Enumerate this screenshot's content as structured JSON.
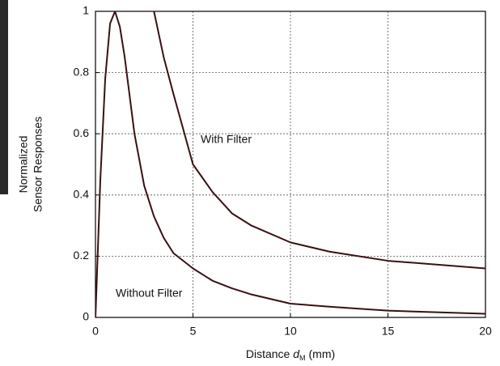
{
  "chart_data": {
    "type": "line",
    "ylabel": [
      "Normalized",
      "Sensor Responses"
    ],
    "xlabel": {
      "text": "Distance",
      "symbol": "d",
      "subscript": "M",
      "unit": "(mm)"
    },
    "x": [
      0,
      0.25,
      0.5,
      0.75,
      1,
      1.25,
      1.5,
      2,
      2.5,
      3,
      3.5,
      4,
      5,
      6,
      7,
      8,
      10,
      12,
      15,
      20
    ],
    "series": [
      {
        "name": "With Filter",
        "color": "#3a1012",
        "values": [
          null,
          null,
          null,
          null,
          null,
          null,
          null,
          null,
          null,
          1.0,
          0.85,
          0.73,
          0.5,
          0.41,
          0.34,
          0.3,
          0.245,
          0.215,
          0.185,
          0.16
        ]
      },
      {
        "name": "Without Filter",
        "color": "#3a1012",
        "values": [
          0,
          0.45,
          0.78,
          0.96,
          1.0,
          0.95,
          0.85,
          0.6,
          0.43,
          0.33,
          0.26,
          0.21,
          0.16,
          0.12,
          0.095,
          0.075,
          0.045,
          0.035,
          0.022,
          0.012
        ]
      }
    ],
    "xlim": [
      0,
      20
    ],
    "xticks": [
      0,
      5,
      10,
      15,
      20
    ],
    "ylim": [
      0,
      1
    ],
    "yticks": [
      0,
      0.2,
      0.4,
      0.6,
      0.8,
      1
    ],
    "grid": true
  }
}
